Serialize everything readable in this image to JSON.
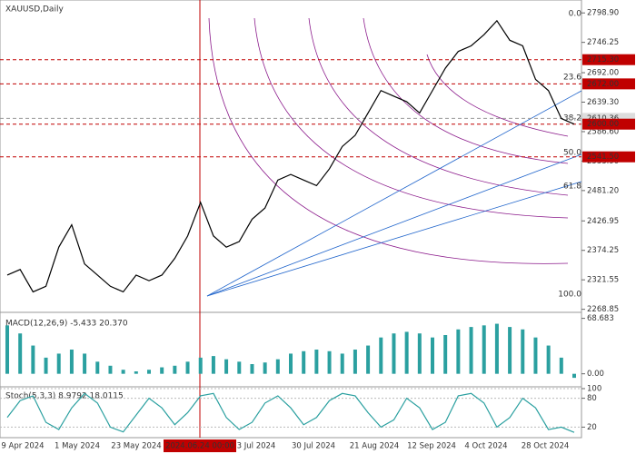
{
  "chart_data": [
    {
      "type": "line",
      "title": "XAUUSD,Daily",
      "color": "#000000",
      "values": [
        2330,
        2340,
        2300,
        2310,
        2380,
        2420,
        2350,
        2330,
        2310,
        2300,
        2330,
        2320,
        2330,
        2360,
        2400,
        2460,
        2400,
        2380,
        2390,
        2430,
        2450,
        2500,
        2510,
        2500,
        2490,
        2520,
        2560,
        2580,
        2620,
        2660,
        2650,
        2640,
        2620,
        2660,
        2700,
        2730,
        2740,
        2760,
        2785,
        2750,
        2740,
        2680,
        2660,
        2610,
        2600
      ],
      "ylim": [
        2265,
        2822
      ],
      "yticks": [
        {
          "value": 2798.9,
          "label": "2798.90"
        },
        2746.25,
        {
          "value": 2692,
          "label": "2692.00"
        },
        {
          "value": 2639.3,
          "label": "2639.30"
        },
        {
          "value": 2586.6,
          "label": "2586.60"
        },
        {
          "value": 2533.9,
          "label": "2533.90"
        },
        {
          "value": 2481.2,
          "label": "2481.20"
        },
        2426.95,
        2374.25,
        2321.55,
        2268.85
      ],
      "levels": [
        {
          "value": 2715.3,
          "label": "2715.30"
        },
        {
          "value": 2672,
          "label": "2672.00"
        },
        {
          "value": 2610.36,
          "label": "2610.36"
        },
        {
          "value": 2600,
          "label": "2600.00"
        },
        {
          "value": 2541.5,
          "label": "2541.50"
        }
      ],
      "x_labels": [
        "9 Apr 2024",
        "1 May 2024",
        "23 May 2024",
        "2024.06.24 00:00",
        "3 Jul 2024",
        "30 Jul 2024",
        "21 Aug 2024",
        "12 Sep 2024",
        "4 Oct 2024",
        "28 Oct 2024"
      ],
      "fib_labels": [
        "0.0",
        "23.6",
        "38.2",
        "50.0",
        "61.8",
        "100.0"
      ]
    },
    {
      "type": "bar",
      "title": "MACD(12,26,9) -5.433 20.370",
      "color": "#2ba0a0",
      "values": [
        60,
        50,
        35,
        20,
        25,
        30,
        25,
        15,
        10,
        5,
        3,
        5,
        8,
        10,
        15,
        20,
        22,
        18,
        15,
        12,
        14,
        18,
        25,
        28,
        30,
        28,
        25,
        30,
        35,
        45,
        50,
        52,
        50,
        45,
        48,
        55,
        58,
        60,
        62,
        58,
        55,
        45,
        35,
        20,
        -5
      ],
      "ylim": [
        -15,
        75
      ],
      "yticks": [
        68.683,
        {
          "value": 0,
          "label": "0.00"
        }
      ]
    },
    {
      "type": "line",
      "title": "Stoch(5,3,3) 8.9792 18.0115",
      "color": "#2ba0a0",
      "values": [
        40,
        75,
        85,
        30,
        15,
        60,
        90,
        70,
        20,
        10,
        45,
        80,
        60,
        25,
        50,
        85,
        90,
        40,
        15,
        30,
        70,
        85,
        60,
        25,
        40,
        75,
        90,
        85,
        50,
        20,
        35,
        80,
        60,
        15,
        30,
        85,
        90,
        70,
        20,
        40,
        80,
        60,
        15,
        20,
        9
      ],
      "ylim": [
        0,
        100
      ],
      "yticks": [
        100,
        80,
        20
      ]
    }
  ]
}
